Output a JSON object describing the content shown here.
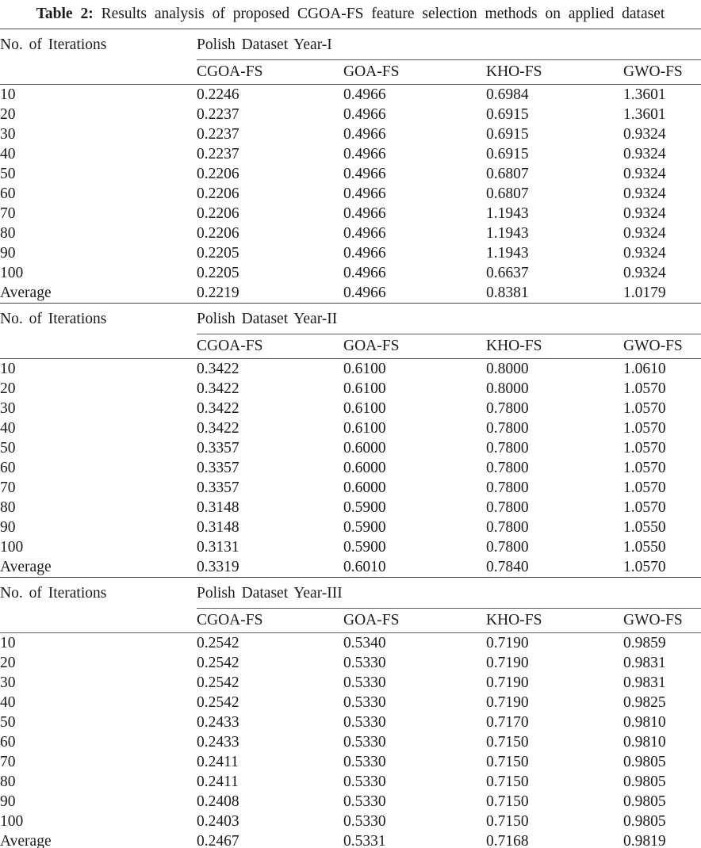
{
  "caption": {
    "label": "Table 2:",
    "text": "Results analysis of proposed CGOA-FS feature selection methods on applied dataset"
  },
  "row_header": "No. of Iterations",
  "methods": [
    "CGOA-FS",
    "GOA-FS",
    "KHO-FS",
    "GWO-FS"
  ],
  "text_color": "#1b1b1b",
  "rule_color": "#5a5a5a",
  "chart_data": {
    "type": "table",
    "title": "Table 2: Results analysis of proposed CGOA-FS feature selection methods on applied dataset",
    "columns": [
      "No. of Iterations",
      "CGOA-FS",
      "GOA-FS",
      "KHO-FS",
      "GWO-FS"
    ]
  },
  "sections": [
    {
      "dataset": "Polish Dataset Year-I",
      "rows": [
        {
          "iteration": "10",
          "values": [
            "0.2246",
            "0.4966",
            "0.6984",
            "1.3601"
          ]
        },
        {
          "iteration": "20",
          "values": [
            "0.2237",
            "0.4966",
            "0.6915",
            "1.3601"
          ]
        },
        {
          "iteration": "30",
          "values": [
            "0.2237",
            "0.4966",
            "0.6915",
            "0.9324"
          ]
        },
        {
          "iteration": "40",
          "values": [
            "0.2237",
            "0.4966",
            "0.6915",
            "0.9324"
          ]
        },
        {
          "iteration": "50",
          "values": [
            "0.2206",
            "0.4966",
            "0.6807",
            "0.9324"
          ]
        },
        {
          "iteration": "60",
          "values": [
            "0.2206",
            "0.4966",
            "0.6807",
            "0.9324"
          ]
        },
        {
          "iteration": "70",
          "values": [
            "0.2206",
            "0.4966",
            "1.1943",
            "0.9324"
          ]
        },
        {
          "iteration": "80",
          "values": [
            "0.2206",
            "0.4966",
            "1.1943",
            "0.9324"
          ]
        },
        {
          "iteration": "90",
          "values": [
            "0.2205",
            "0.4966",
            "1.1943",
            "0.9324"
          ]
        },
        {
          "iteration": "100",
          "values": [
            "0.2205",
            "0.4966",
            "0.6637",
            "0.9324"
          ]
        },
        {
          "iteration": "Average",
          "values": [
            "0.2219",
            "0.4966",
            "0.8381",
            "1.0179"
          ]
        }
      ]
    },
    {
      "dataset": "Polish Dataset Year-II",
      "rows": [
        {
          "iteration": "10",
          "values": [
            "0.3422",
            "0.6100",
            "0.8000",
            "1.0610"
          ]
        },
        {
          "iteration": "20",
          "values": [
            "0.3422",
            "0.6100",
            "0.8000",
            "1.0570"
          ]
        },
        {
          "iteration": "30",
          "values": [
            "0.3422",
            "0.6100",
            "0.7800",
            "1.0570"
          ]
        },
        {
          "iteration": "40",
          "values": [
            "0.3422",
            "0.6100",
            "0.7800",
            "1.0570"
          ]
        },
        {
          "iteration": "50",
          "values": [
            "0.3357",
            "0.6000",
            "0.7800",
            "1.0570"
          ]
        },
        {
          "iteration": "60",
          "values": [
            "0.3357",
            "0.6000",
            "0.7800",
            "1.0570"
          ]
        },
        {
          "iteration": "70",
          "values": [
            "0.3357",
            "0.6000",
            "0.7800",
            "1.0570"
          ]
        },
        {
          "iteration": "80",
          "values": [
            "0.3148",
            "0.5900",
            "0.7800",
            "1.0570"
          ]
        },
        {
          "iteration": "90",
          "values": [
            "0.3148",
            "0.5900",
            "0.7800",
            "1.0550"
          ]
        },
        {
          "iteration": "100",
          "values": [
            "0.3131",
            "0.5900",
            "0.7800",
            "1.0550"
          ]
        },
        {
          "iteration": "Average",
          "values": [
            "0.3319",
            "0.6010",
            "0.7840",
            "1.0570"
          ]
        }
      ]
    },
    {
      "dataset": "Polish Dataset Year-III",
      "rows": [
        {
          "iteration": "10",
          "values": [
            "0.2542",
            "0.5340",
            "0.7190",
            "0.9859"
          ]
        },
        {
          "iteration": "20",
          "values": [
            "0.2542",
            "0.5330",
            "0.7190",
            "0.9831"
          ]
        },
        {
          "iteration": "30",
          "values": [
            "0.2542",
            "0.5330",
            "0.7190",
            "0.9831"
          ]
        },
        {
          "iteration": "40",
          "values": [
            "0.2542",
            "0.5330",
            "0.7190",
            "0.9825"
          ]
        },
        {
          "iteration": "50",
          "values": [
            "0.2433",
            "0.5330",
            "0.7170",
            "0.9810"
          ]
        },
        {
          "iteration": "60",
          "values": [
            "0.2433",
            "0.5330",
            "0.7150",
            "0.9810"
          ]
        },
        {
          "iteration": "70",
          "values": [
            "0.2411",
            "0.5330",
            "0.7150",
            "0.9805"
          ]
        },
        {
          "iteration": "80",
          "values": [
            "0.2411",
            "0.5330",
            "0.7150",
            "0.9805"
          ]
        },
        {
          "iteration": "90",
          "values": [
            "0.2408",
            "0.5330",
            "0.7150",
            "0.9805"
          ]
        },
        {
          "iteration": "100",
          "values": [
            "0.2403",
            "0.5330",
            "0.7150",
            "0.9805"
          ]
        },
        {
          "iteration": "Average",
          "values": [
            "0.2467",
            "0.5331",
            "0.7168",
            "0.9819"
          ]
        }
      ]
    }
  ]
}
